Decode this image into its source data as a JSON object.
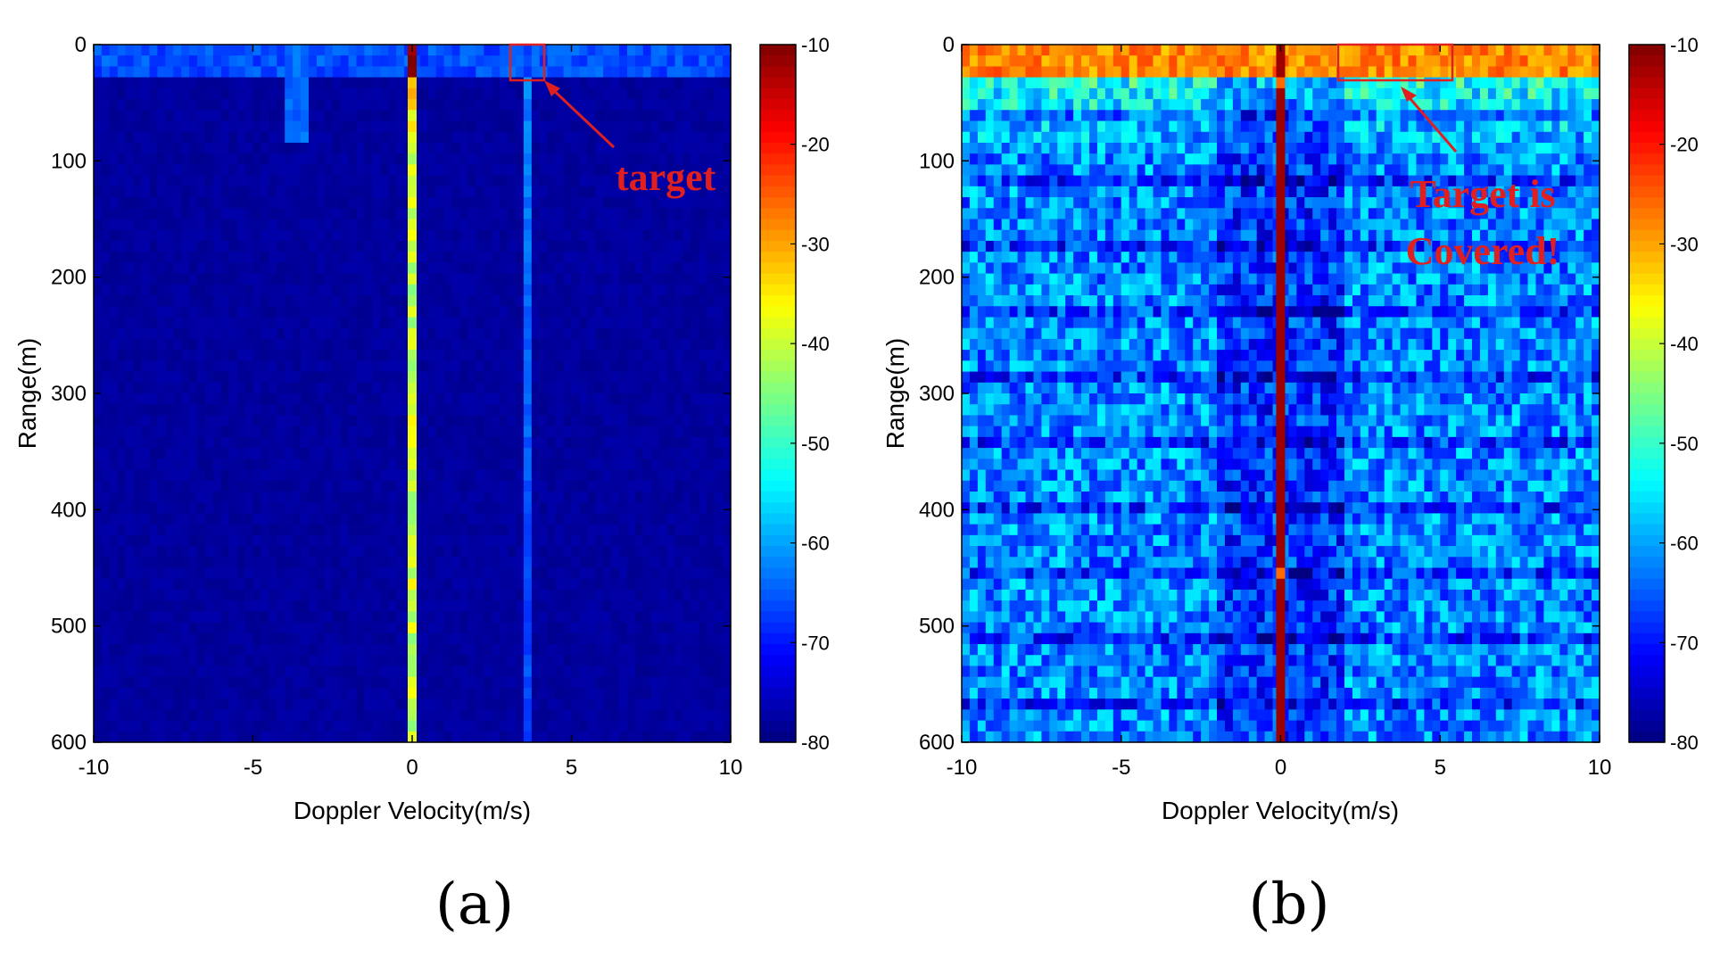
{
  "chart_data": [
    {
      "type": "heatmap",
      "panel_label": "(a)",
      "xlabel": "Doppler Velocity(m/s)",
      "ylabel": "Range(m)",
      "xlim": [
        -10,
        10
      ],
      "ylim": [
        0,
        600
      ],
      "y_reversed": true,
      "xticks": [
        "-10",
        "-5",
        "0",
        "5",
        "10"
      ],
      "yticks": [
        "0",
        "100",
        "200",
        "300",
        "400",
        "500",
        "600"
      ],
      "colorbar": {
        "range": [
          -80,
          -10
        ],
        "ticks": [
          "-10",
          "-20",
          "-30",
          "-40",
          "-50",
          "-60",
          "-70",
          "-80"
        ]
      },
      "background_level": -78,
      "features": [
        {
          "kind": "zero-doppler-line",
          "velocity": 0,
          "level": -40
        },
        {
          "kind": "target-column",
          "velocity": 3.6,
          "level": -62
        },
        {
          "kind": "near-range-clutter",
          "range_max": 30,
          "level": -66
        }
      ],
      "target": {
        "velocity": [
          3.2,
          4.2
        ],
        "range": [
          0,
          30
        ]
      },
      "annotation": "target"
    },
    {
      "type": "heatmap",
      "panel_label": "(b)",
      "xlabel": "Doppler Velocity(m/s)",
      "ylabel": "Range(m)",
      "xlim": [
        -10,
        10
      ],
      "ylim": [
        0,
        600
      ],
      "y_reversed": true,
      "xticks": [
        "-10",
        "-5",
        "0",
        "5",
        "10"
      ],
      "yticks": [
        "0",
        "100",
        "200",
        "300",
        "400",
        "500",
        "600"
      ],
      "colorbar": {
        "range": [
          -80,
          -10
        ],
        "ticks": [
          "-10",
          "-20",
          "-30",
          "-40",
          "-50",
          "-60",
          "-70",
          "-80"
        ]
      },
      "background_level": -62,
      "features": [
        {
          "kind": "zero-doppler-line",
          "velocity": 0,
          "level": -12
        },
        {
          "kind": "near-range-clutter",
          "range_max": 30,
          "level": -28
        }
      ],
      "target": {
        "velocity": [
          1.8,
          5.5
        ],
        "range": [
          0,
          28
        ]
      },
      "annotation_lines": [
        "Target is",
        "Covered!"
      ]
    }
  ]
}
